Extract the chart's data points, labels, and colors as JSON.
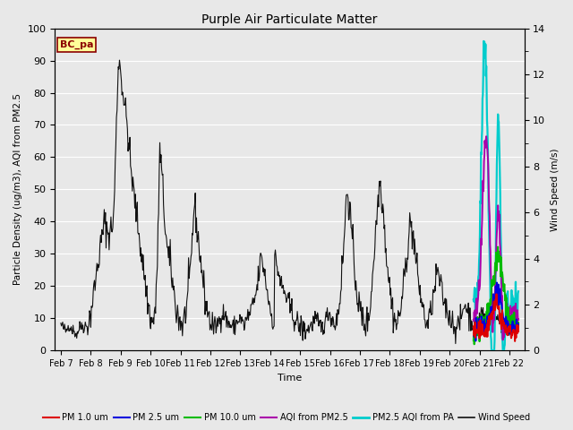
{
  "title": "Purple Air Particulate Matter",
  "ylabel_left": "Particle Density (ug/m3), AQI from PM2.5",
  "ylabel_right": "Wind Speed (m/s)",
  "xlabel": "Time",
  "ylim_left": [
    0,
    100
  ],
  "ylim_right": [
    0,
    14
  ],
  "fig_bg": "#e8e8e8",
  "plot_bg": "#e8e8e8",
  "grid_color": "#ffffff",
  "annotation_text": "BC_pa",
  "annotation_color": "#8b0000",
  "annotation_bg": "#ffff99",
  "legend_entries": [
    {
      "label": "PM 1.0 um",
      "color": "#dd0000",
      "lw": 1.5
    },
    {
      "label": "PM 2.5 um",
      "color": "#0000dd",
      "lw": 1.5
    },
    {
      "label": "PM 10.0 um",
      "color": "#00bb00",
      "lw": 1.5
    },
    {
      "label": "AQI from PM2.5",
      "color": "#aa00aa",
      "lw": 1.5
    },
    {
      "label": "PM2.5 AQI from PA",
      "color": "#00cccc",
      "lw": 2.0
    },
    {
      "label": "Wind Speed",
      "color": "#111111",
      "lw": 1.2
    }
  ],
  "x_tick_labels": [
    "Feb 7",
    "Feb 8",
    "Feb 9",
    "Feb 10",
    "Feb 11",
    "Feb 12",
    "Feb 13",
    "Feb 14",
    "Feb 15",
    "Feb 16",
    "Feb 17",
    "Feb 18",
    "Feb 19",
    "Feb 20",
    "Feb 21",
    "Feb 22"
  ],
  "x_tick_positions": [
    0,
    1,
    2,
    3,
    4,
    5,
    6,
    7,
    8,
    9,
    10,
    11,
    12,
    13,
    14,
    15
  ]
}
